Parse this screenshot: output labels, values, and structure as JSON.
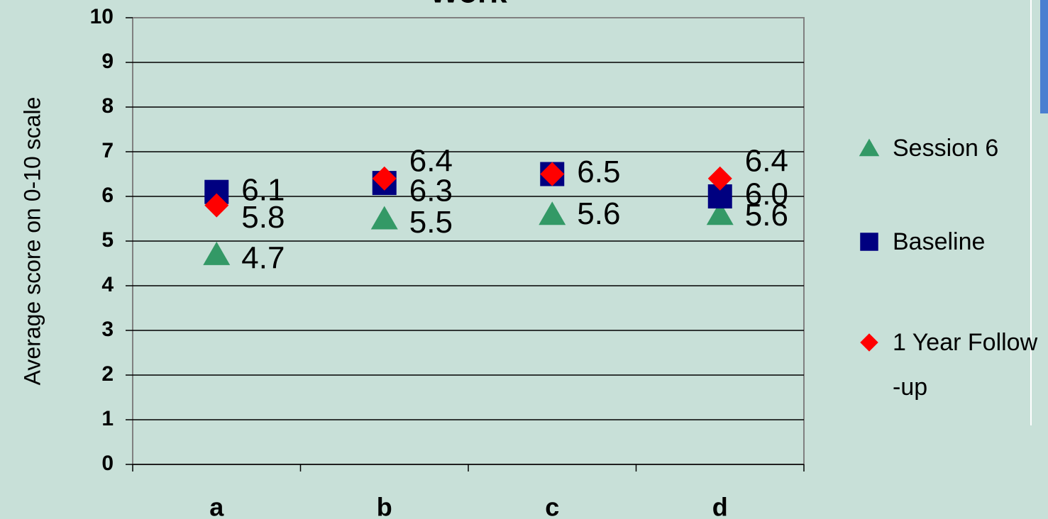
{
  "chart_data": {
    "type": "scatter",
    "title": "Work",
    "y_label": "Average score on 0-10 scale",
    "categories": [
      "a",
      "b",
      "c",
      "d"
    ],
    "series": [
      {
        "name": "Session 6",
        "color": "#339966",
        "marker": "triangle",
        "values": [
          4.7,
          5.5,
          5.6,
          5.6
        ],
        "value_labels": [
          "4.7",
          "5.5",
          "5.6",
          "5.6"
        ]
      },
      {
        "name": "Baseline",
        "color": "#000080",
        "marker": "square",
        "values": [
          6.1,
          6.3,
          6.5,
          6.0
        ],
        "value_labels": [
          "6.1",
          "6.3",
          "6.5",
          "6.0"
        ]
      },
      {
        "name": "1 Year Follow -up",
        "color": "#ff0000",
        "marker": "diamond",
        "values": [
          5.8,
          6.4,
          6.5,
          6.4
        ],
        "value_labels": [
          "5.8",
          "6.4",
          "6.5",
          "6.4"
        ]
      }
    ],
    "ylim": [
      0,
      10
    ],
    "yticks": [
      0,
      1,
      2,
      3,
      4,
      5,
      6,
      7,
      8,
      9,
      10
    ],
    "grid": true,
    "legend": "right"
  }
}
